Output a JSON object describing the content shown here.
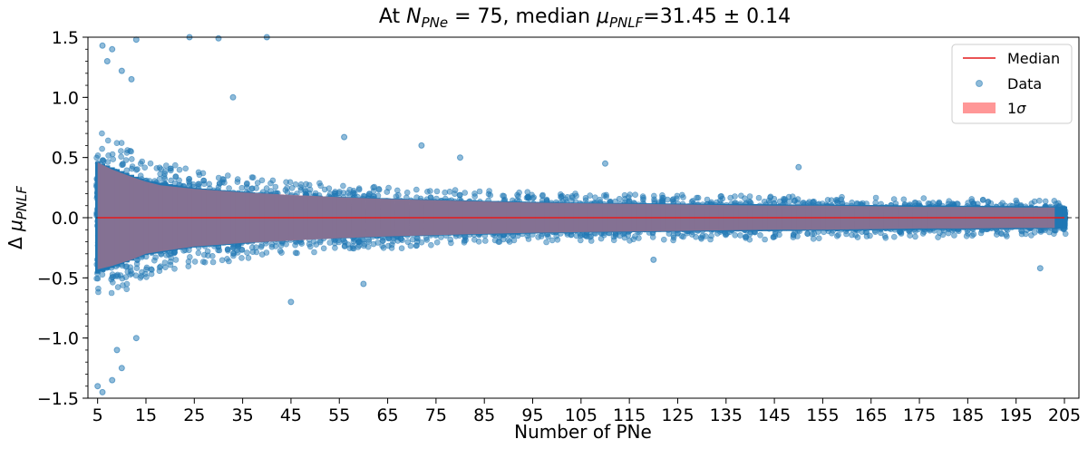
{
  "chart_data": {
    "type": "scatter",
    "title": {
      "prefix": "At ",
      "n_symbol": "N",
      "n_sub": "PNe",
      "n_value": " = 75, median ",
      "mu_symbol": "μ",
      "mu_sub": "PNLF",
      "mu_value": "=31.45 ± 0.14"
    },
    "xlabel": "Number of PNe",
    "ylabel": {
      "prefix": "Δ ",
      "symbol": "μ",
      "sub": "PNLF"
    },
    "xlim": [
      3,
      208
    ],
    "ylim": [
      -1.5,
      1.5
    ],
    "xticks": [
      5,
      15,
      25,
      35,
      45,
      55,
      65,
      75,
      85,
      95,
      105,
      115,
      125,
      135,
      145,
      155,
      165,
      175,
      185,
      195,
      205
    ],
    "yticks": [
      -1.5,
      -1.0,
      -0.5,
      0.0,
      0.5,
      1.0,
      1.5
    ],
    "ytick_labels": [
      "−1.5",
      "−1.0",
      "−0.5",
      "0.0",
      "0.5",
      "1.0",
      "1.5"
    ],
    "reference_line_y": 0.0,
    "legend": {
      "placement": "top-right",
      "entries": [
        {
          "kind": "line",
          "label": "Median",
          "color": "#e31a1c"
        },
        {
          "kind": "point",
          "label": "Data",
          "color": "#1f77b4"
        },
        {
          "kind": "patch",
          "label": "1",
          "label_symbol": "σ",
          "color": "#ff6b6b"
        }
      ]
    },
    "median_series": {
      "name": "Median",
      "x": [
        5,
        205
      ],
      "y": [
        0.0,
        0.0
      ],
      "color": "#e31a1c"
    },
    "sigma_band": {
      "name": "1σ",
      "x": [
        5,
        8,
        12,
        15,
        18,
        25,
        35,
        45,
        55,
        65,
        75,
        85,
        95,
        105,
        115,
        125,
        135,
        145,
        155,
        165,
        175,
        185,
        195,
        203
      ],
      "upper": [
        0.46,
        0.4,
        0.34,
        0.3,
        0.27,
        0.24,
        0.21,
        0.19,
        0.17,
        0.155,
        0.145,
        0.135,
        0.125,
        0.12,
        0.115,
        0.11,
        0.105,
        0.1,
        0.1,
        0.095,
        0.09,
        0.09,
        0.085,
        0.085
      ],
      "lower": [
        -0.43,
        -0.4,
        -0.35,
        -0.3,
        -0.28,
        -0.24,
        -0.21,
        -0.19,
        -0.17,
        -0.155,
        -0.145,
        -0.135,
        -0.125,
        -0.12,
        -0.115,
        -0.11,
        -0.105,
        -0.1,
        -0.1,
        -0.095,
        -0.09,
        -0.09,
        -0.085,
        -0.085
      ],
      "color": "#ff6b6b"
    },
    "data_series": {
      "name": "Data",
      "color": "#1f77b4",
      "x_range": [
        5,
        205
      ],
      "core_halfwidth": [
        [
          5,
          0.75
        ],
        [
          15,
          0.5
        ],
        [
          25,
          0.4
        ],
        [
          45,
          0.3
        ],
        [
          75,
          0.24
        ],
        [
          105,
          0.2
        ],
        [
          145,
          0.18
        ],
        [
          205,
          0.15
        ]
      ],
      "outliers": [
        [
          6,
          1.43
        ],
        [
          8,
          1.4
        ],
        [
          13,
          1.48
        ],
        [
          24,
          1.5
        ],
        [
          30,
          1.49
        ],
        [
          40,
          1.5
        ],
        [
          7,
          1.3
        ],
        [
          10,
          1.22
        ],
        [
          12,
          1.15
        ],
        [
          33,
          1.0
        ],
        [
          6,
          -1.45
        ],
        [
          8,
          -1.35
        ],
        [
          5,
          -1.4
        ],
        [
          10,
          -1.25
        ],
        [
          9,
          -1.1
        ],
        [
          13,
          -1.0
        ],
        [
          56,
          0.67
        ],
        [
          72,
          0.6
        ],
        [
          80,
          0.5
        ],
        [
          110,
          0.45
        ],
        [
          150,
          0.42
        ],
        [
          200,
          -0.42
        ],
        [
          45,
          -0.7
        ],
        [
          60,
          -0.55
        ],
        [
          120,
          -0.35
        ]
      ]
    }
  }
}
